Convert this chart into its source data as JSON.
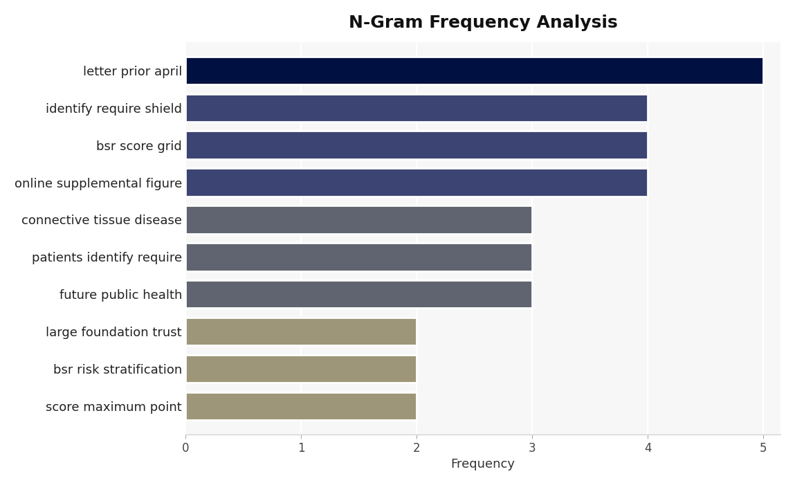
{
  "title": "N-Gram Frequency Analysis",
  "categories": [
    "score maximum point",
    "bsr risk stratification",
    "large foundation trust",
    "future public health",
    "patients identify require",
    "connective tissue disease",
    "online supplemental figure",
    "bsr score grid",
    "identify require shield",
    "letter prior april"
  ],
  "values": [
    2,
    2,
    2,
    3,
    3,
    3,
    4,
    4,
    4,
    5
  ],
  "bar_colors": [
    "#9e9678",
    "#9e9678",
    "#9e9678",
    "#5f6470",
    "#5f6470",
    "#5f6470",
    "#3b4472",
    "#3b4472",
    "#3b4472",
    "#001040"
  ],
  "xlabel": "Frequency",
  "ylabel": "",
  "xlim": [
    0,
    5.15
  ],
  "xticks": [
    0,
    1,
    2,
    3,
    4,
    5
  ],
  "plot_bg_color": "#f7f7f7",
  "fig_bg_color": "#ffffff",
  "title_fontsize": 18,
  "label_fontsize": 13,
  "tick_fontsize": 12,
  "bar_height": 0.75
}
